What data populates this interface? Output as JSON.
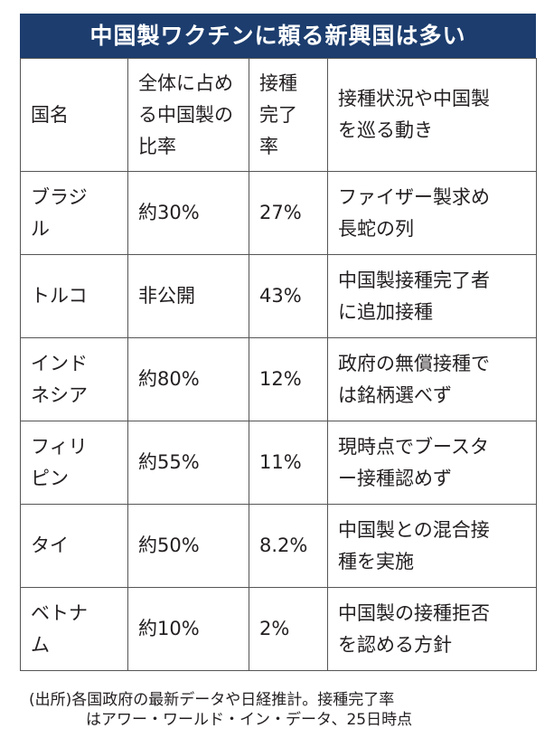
{
  "title": "中国製ワクチンに頼る新興国は多い",
  "headers": {
    "country": "国名",
    "share": "全体に占める中国製の比率",
    "completion": "接種完了率",
    "status": "接種状況や中国製を巡る動き"
  },
  "rows": [
    {
      "country": "ブラジル",
      "share": "約30%",
      "completion": "27%",
      "status": "ファイザー製求め長蛇の列"
    },
    {
      "country": "トルコ",
      "share": "非公開",
      "completion": "43%",
      "status": "中国製接種完了者に追加接種"
    },
    {
      "country": "インドネシア",
      "share": "約80%",
      "completion": "12%",
      "status": "政府の無償接種では銘柄選べず"
    },
    {
      "country": "フィリピン",
      "share": "約55%",
      "completion": "11%",
      "status": "現時点でブースター接種認めず"
    },
    {
      "country": "タイ",
      "share": "約50%",
      "completion": "8.2%",
      "status": "中国製との混合接種を実施"
    },
    {
      "country": "ベトナム",
      "share": "約10%",
      "completion": "2%",
      "status": "中国製の接種拒否を認める方針"
    }
  ],
  "source_note": {
    "line1": "(出所)各国政府の最新データや日経推計。接種完了率",
    "line2": "はアワー・ワールド・イン・データ、25日時点"
  },
  "colors": {
    "title_background": "#1c3d6e",
    "title_text": "#ffffff",
    "grid_line": "#555555"
  }
}
